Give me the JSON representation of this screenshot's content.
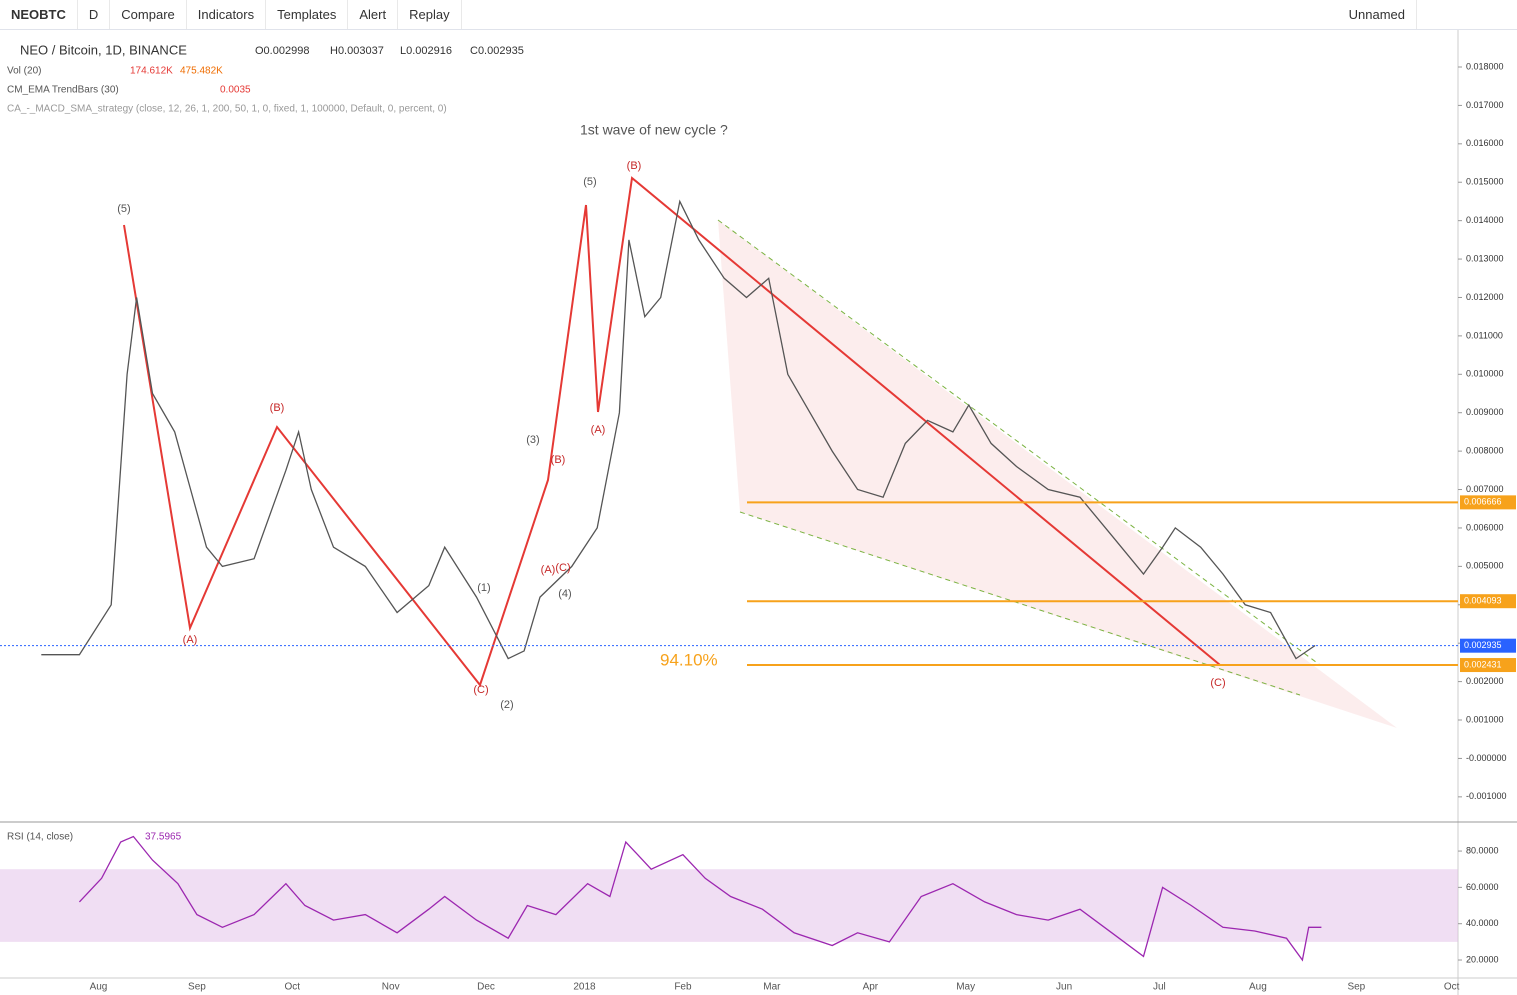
{
  "toolbar": {
    "symbol": "NEOBTC",
    "interval": "D",
    "items": [
      "Compare",
      "Indicators",
      "Templates",
      "Alert",
      "Replay"
    ],
    "layout_name": "Unnamed"
  },
  "legend": {
    "title": "NEO / Bitcoin, 1D, BINANCE",
    "ohlc": [
      "O0.002998",
      "H0.003037",
      "L0.002916",
      "C0.002935"
    ],
    "studies": [
      {
        "name": "Vol (20)",
        "values": [
          "174.612K",
          "475.482K"
        ]
      },
      {
        "name": "CM_EMA TrendBars (30)",
        "values": [
          "0.0035"
        ]
      },
      {
        "name": "CA_-_MACD_SMA_strategy (close, 12, 26, 1, 200, 50, 1, 0, fixed, 1, 100000, Default, 0, percent, 0)",
        "values": []
      }
    ],
    "rsi_name": "RSI (14, close)",
    "rsi_value": "37.5965"
  },
  "annotations": [
    "1st wave of new cycle ?",
    "94.10%",
    "(B)",
    "(A)",
    "(C)",
    "(5)",
    "(3)",
    "(4)",
    "(1)",
    "(2)",
    "(C)",
    "(B)",
    "(A)",
    "(B)",
    "(A)",
    "(5)",
    "(C)"
  ],
  "chart_data": [
    {
      "type": "line",
      "color": "#555555",
      "x": [
        13,
        25,
        35,
        40,
        43,
        48,
        55,
        60,
        65,
        70,
        80,
        90,
        94,
        98,
        105,
        115,
        125,
        135,
        140,
        150,
        160,
        165,
        170,
        180,
        188,
        195,
        198,
        203,
        208,
        214,
        220,
        228,
        235,
        242,
        248,
        255,
        262,
        270,
        278,
        285,
        292,
        300,
        305,
        312,
        320,
        330,
        340,
        350,
        360,
        366,
        370,
        378,
        385,
        392,
        400,
        408,
        414
      ],
      "values": [
        0.0027,
        0.0027,
        0.004,
        0.01,
        0.012,
        0.0095,
        0.0085,
        0.007,
        0.0055,
        0.005,
        0.0052,
        0.0075,
        0.0085,
        0.007,
        0.0055,
        0.005,
        0.0038,
        0.0045,
        0.0055,
        0.0042,
        0.0026,
        0.0028,
        0.0042,
        0.005,
        0.006,
        0.009,
        0.0135,
        0.0115,
        0.012,
        0.0145,
        0.0135,
        0.0125,
        0.012,
        0.0125,
        0.01,
        0.009,
        0.008,
        0.007,
        0.0068,
        0.0082,
        0.0088,
        0.0085,
        0.0092,
        0.0082,
        0.0076,
        0.007,
        0.0068,
        0.0058,
        0.0048,
        0.0055,
        0.006,
        0.0055,
        0.0048,
        0.004,
        0.0038,
        0.0026,
        0.00294
      ],
      "ylim": [
        -0.001655,
        0.018963
      ],
      "yticks": [
        {
          "value": 0.018,
          "label": "0.018000"
        },
        {
          "value": 0.017,
          "label": "0.017000"
        },
        {
          "value": 0.016,
          "label": "0.016000"
        },
        {
          "value": 0.015,
          "label": "0.015000"
        },
        {
          "value": 0.014,
          "label": "0.014000"
        },
        {
          "value": 0.013,
          "label": "0.013000"
        },
        {
          "value": 0.012,
          "label": "0.012000"
        },
        {
          "value": 0.011,
          "label": "0.011000"
        },
        {
          "value": 0.01,
          "label": "0.010000"
        },
        {
          "value": 0.009,
          "label": "0.009000"
        },
        {
          "value": 0.008,
          "label": "0.008000"
        },
        {
          "value": 0.007,
          "label": "0.007000"
        },
        {
          "value": 0.006,
          "label": "0.006000"
        },
        {
          "value": 0.005,
          "label": "0.005000"
        },
        {
          "value": 0.004,
          "label": "0.004000"
        },
        {
          "value": 0.003,
          "label": "0.003000"
        },
        {
          "value": 0.002,
          "label": "0.002000"
        },
        {
          "value": 0.001,
          "label": "0.001000"
        },
        {
          "value": 0,
          "label": "-0.000000"
        },
        {
          "value": -0.001,
          "label": "-0.001000"
        }
      ],
      "price_levels": [
        {
          "value": 0.006666,
          "label": "0.006666",
          "color": "#f7a21b"
        },
        {
          "value": 0.004093,
          "label": "0.004093",
          "color": "#f7a21b"
        },
        {
          "value": 0.002431,
          "label": "0.002431",
          "color": "#f7a21b"
        },
        {
          "value": 0.002935,
          "label": "0.002935",
          "color": "#2962ff"
        }
      ],
      "xlim": [
        0,
        459
      ],
      "xticks": [
        {
          "value": 31,
          "label": "Aug"
        },
        {
          "value": 62,
          "label": "Sep"
        },
        {
          "value": 92,
          "label": "Oct"
        },
        {
          "value": 123,
          "label": "Nov"
        },
        {
          "value": 153,
          "label": "Dec"
        },
        {
          "value": 184,
          "label": "2018"
        },
        {
          "value": 215,
          "label": "Feb"
        },
        {
          "value": 243,
          "label": "Mar"
        },
        {
          "value": 274,
          "label": "Apr"
        },
        {
          "value": 304,
          "label": "May"
        },
        {
          "value": 335,
          "label": "Jun"
        },
        {
          "value": 365,
          "label": "Jul"
        },
        {
          "value": 396,
          "label": "Aug"
        },
        {
          "value": 427,
          "label": "Sep"
        },
        {
          "value": 457,
          "label": "Oct"
        }
      ]
    },
    {
      "type": "line",
      "color": "#9c27b0",
      "x": [
        25,
        32,
        38,
        42,
        48,
        56,
        62,
        70,
        80,
        90,
        96,
        105,
        115,
        125,
        135,
        140,
        150,
        160,
        166,
        175,
        185,
        192,
        197,
        205,
        215,
        222,
        230,
        240,
        250,
        262,
        270,
        280,
        290,
        300,
        310,
        320,
        330,
        340,
        350,
        360,
        366,
        375,
        385,
        395,
        405,
        410,
        412,
        416
      ],
      "values": [
        52,
        65,
        85,
        88,
        75,
        62,
        45,
        38,
        45,
        62,
        50,
        42,
        45,
        35,
        48,
        55,
        42,
        32,
        50,
        45,
        62,
        55,
        85,
        70,
        78,
        65,
        55,
        48,
        35,
        28,
        35,
        30,
        55,
        62,
        52,
        45,
        42,
        48,
        35,
        22,
        60,
        50,
        38,
        36,
        32,
        20,
        38,
        38
      ],
      "ylim": [
        10.1,
        96
      ],
      "yticks": [
        {
          "value": 80,
          "label": "80.0000"
        },
        {
          "value": 60,
          "label": "60.0000"
        },
        {
          "value": 40,
          "label": "40.0000"
        },
        {
          "value": 20,
          "label": "20.0000"
        }
      ],
      "bands": [
        30,
        70
      ]
    }
  ]
}
